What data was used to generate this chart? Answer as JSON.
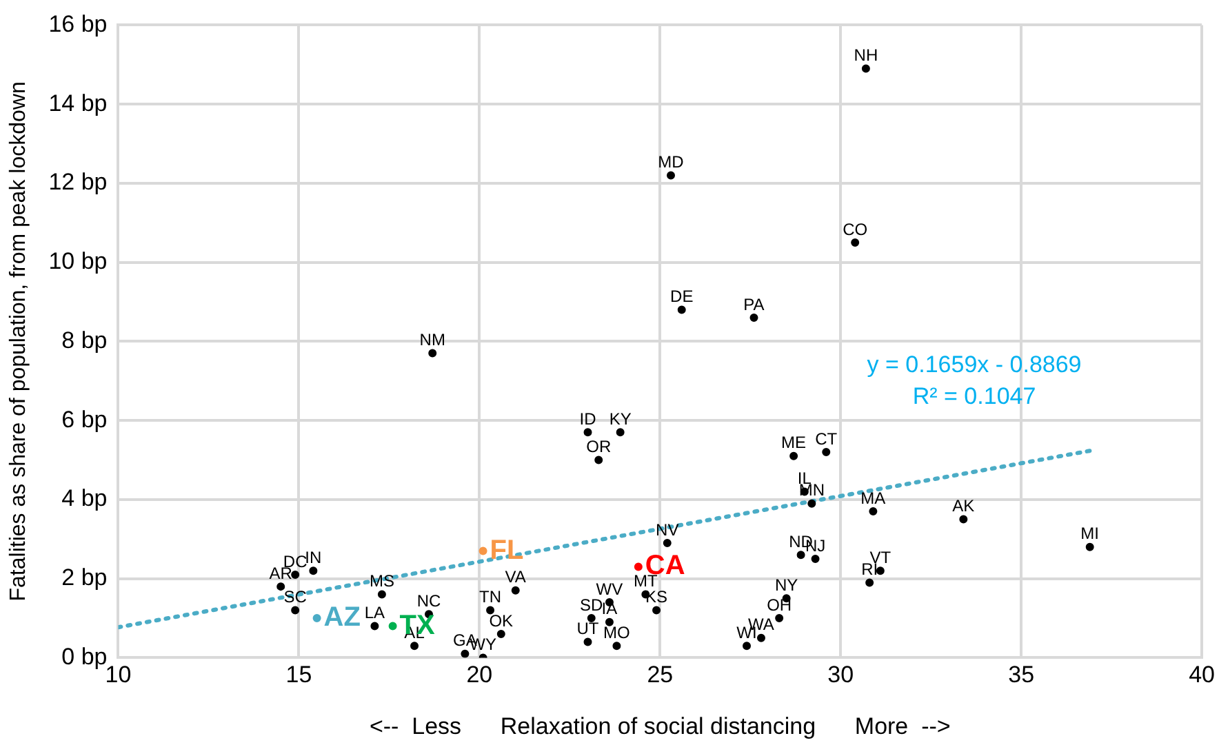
{
  "chart_data": {
    "type": "scatter",
    "xlabel": "<--  Less      Relaxation of social distancing      More  -->",
    "ylabel": "Fatalities as share of population, from peak lockdown",
    "xlim": [
      10,
      40
    ],
    "xticks": [
      10,
      15,
      20,
      25,
      30,
      35,
      40
    ],
    "ylim": [
      0,
      16
    ],
    "yticks": [
      {
        "value": 0,
        "label": "0 bp"
      },
      {
        "value": 2,
        "label": "2 bp"
      },
      {
        "value": 4,
        "label": "4 bp"
      },
      {
        "value": 6,
        "label": "6 bp"
      },
      {
        "value": 8,
        "label": "8 bp"
      },
      {
        "value": 10,
        "label": "10 bp"
      },
      {
        "value": 12,
        "label": "12 bp"
      },
      {
        "value": 14,
        "label": "14 bp"
      },
      {
        "value": 16,
        "label": "16 bp"
      }
    ],
    "grid": true,
    "legend": false,
    "series": [
      {
        "color": "#000000",
        "marker": "circle",
        "x": [
          30.7,
          25.3,
          30.4,
          25.6,
          27.6,
          18.7,
          23.0,
          23.9,
          23.3,
          28.7,
          29.6,
          29.0,
          29.2,
          30.9,
          33.4,
          36.9,
          28.9,
          29.3,
          31.1,
          30.8,
          28.5,
          28.3,
          27.4,
          27.8,
          25.2,
          24.4,
          24.6,
          24.9,
          23.6,
          23.1,
          23.6,
          23.0,
          23.8,
          21.0,
          20.3,
          20.6,
          19.6,
          20.1,
          18.2,
          20.1,
          17.3,
          18.6,
          17.1,
          17.6,
          15.5,
          14.5,
          14.9,
          15.4,
          14.9
        ],
        "values": [
          14.9,
          12.2,
          10.5,
          8.8,
          8.6,
          7.7,
          5.7,
          5.7,
          5.0,
          5.1,
          5.2,
          4.2,
          3.9,
          3.7,
          3.5,
          2.8,
          2.6,
          2.5,
          2.2,
          1.9,
          1.5,
          1.0,
          0.3,
          0.5,
          2.9,
          2.3,
          1.6,
          1.2,
          1.4,
          1.0,
          0.9,
          0.4,
          0.3,
          1.7,
          1.2,
          0.6,
          0.1,
          0.0,
          0.3,
          2.7,
          1.6,
          1.1,
          0.8,
          0.8,
          1.0,
          1.8,
          2.1,
          2.2,
          1.2
        ],
        "value_labels": [
          "NH",
          "MD",
          "CO",
          "DE",
          "PA",
          "NM",
          "ID",
          "KY",
          "OR",
          "ME",
          "CT",
          "IL",
          "MN",
          "MA",
          "AK",
          "MI",
          "ND",
          "NJ",
          "VT",
          "RI",
          "NY",
          "OH",
          "WI",
          "WA",
          "NV",
          "CA",
          "MT",
          "KS",
          "WV",
          "SD",
          "IA",
          "UT",
          "MO",
          "VA",
          "TN",
          "OK",
          "GA",
          "WY",
          "AL",
          "FL",
          "MS",
          "NC",
          "LA",
          "TX",
          "AZ",
          "AR",
          "DC",
          "IN",
          "SC"
        ],
        "colors": [
          "#000000",
          "#000000",
          "#000000",
          "#000000",
          "#000000",
          "#000000",
          "#000000",
          "#000000",
          "#000000",
          "#000000",
          "#000000",
          "#000000",
          "#000000",
          "#000000",
          "#000000",
          "#000000",
          "#000000",
          "#000000",
          "#000000",
          "#000000",
          "#000000",
          "#000000",
          "#000000",
          "#000000",
          "#000000",
          "#ff0000",
          "#000000",
          "#000000",
          "#000000",
          "#000000",
          "#000000",
          "#000000",
          "#000000",
          "#000000",
          "#000000",
          "#000000",
          "#000000",
          "#000000",
          "#000000",
          "#f79646",
          "#000000",
          "#000000",
          "#000000",
          "#00b050",
          "#4bacc6",
          "#000000",
          "#000000",
          "#000000",
          "#000000"
        ]
      },
      {
        "type": "line",
        "color": "#4bacc6",
        "line_style": "dotted",
        "x": [
          10,
          37
        ],
        "values": [
          0.77,
          5.25
        ]
      }
    ],
    "annotations": [
      "y = 0.1659x - 0.8869",
      "R² = 0.1047"
    ]
  }
}
